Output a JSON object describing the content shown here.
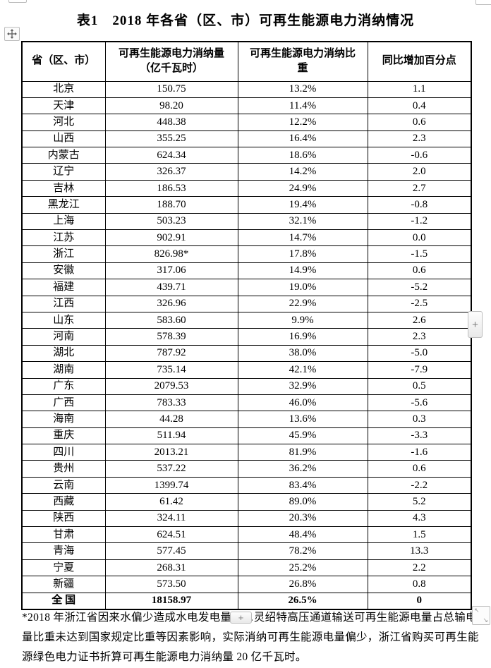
{
  "page": {
    "title": "表1　2018 年各省（区、市）可再生能源电力消纳情况"
  },
  "table": {
    "headers": [
      "省（区、市）",
      "可再生能源电力消纳量\n（亿千瓦时）",
      "可再生能源电力消纳比\n重",
      "同比增加百分点"
    ],
    "rows": [
      [
        "北京",
        "150.75",
        "13.2%",
        "1.1"
      ],
      [
        "天津",
        "98.20",
        "11.4%",
        "0.4"
      ],
      [
        "河北",
        "448.38",
        "12.2%",
        "0.6"
      ],
      [
        "山西",
        "355.25",
        "16.4%",
        "2.3"
      ],
      [
        "内蒙古",
        "624.34",
        "18.6%",
        "-0.6"
      ],
      [
        "辽宁",
        "326.37",
        "14.2%",
        "2.0"
      ],
      [
        "吉林",
        "186.53",
        "24.9%",
        "2.7"
      ],
      [
        "黑龙江",
        "188.70",
        "19.4%",
        "-0.8"
      ],
      [
        "上海",
        "503.23",
        "32.1%",
        "-1.2"
      ],
      [
        "江苏",
        "902.91",
        "14.7%",
        "0.0"
      ],
      [
        "浙江",
        "826.98*",
        "17.8%",
        "-1.5"
      ],
      [
        "安徽",
        "317.06",
        "14.9%",
        "0.6"
      ],
      [
        "福建",
        "439.71",
        "19.0%",
        "-5.2"
      ],
      [
        "江西",
        "326.96",
        "22.9%",
        "-2.5"
      ],
      [
        "山东",
        "583.60",
        "9.9%",
        "2.6"
      ],
      [
        "河南",
        "578.39",
        "16.9%",
        "2.3"
      ],
      [
        "湖北",
        "787.92",
        "38.0%",
        "-5.0"
      ],
      [
        "湖南",
        "735.14",
        "42.1%",
        "-7.9"
      ],
      [
        "广东",
        "2079.53",
        "32.9%",
        "0.5"
      ],
      [
        "广西",
        "783.33",
        "46.0%",
        "-5.6"
      ],
      [
        "海南",
        "44.28",
        "13.6%",
        "0.3"
      ],
      [
        "重庆",
        "511.94",
        "45.9%",
        "-3.3"
      ],
      [
        "四川",
        "2013.21",
        "81.9%",
        "-1.6"
      ],
      [
        "贵州",
        "537.22",
        "36.2%",
        "0.6"
      ],
      [
        "云南",
        "1399.74",
        "83.4%",
        "-2.2"
      ],
      [
        "西藏",
        "61.42",
        "89.0%",
        "5.2"
      ],
      [
        "陕西",
        "324.11",
        "20.3%",
        "4.3"
      ],
      [
        "甘肃",
        "624.51",
        "48.4%",
        "1.5"
      ],
      [
        "青海",
        "577.45",
        "78.2%",
        "13.3"
      ],
      [
        "宁夏",
        "268.31",
        "25.2%",
        "2.2"
      ],
      [
        "新疆",
        "573.50",
        "26.8%",
        "0.8"
      ]
    ],
    "total": [
      "全 国",
      "18158.97",
      "26.5%",
      "0"
    ]
  },
  "footnote": "*2018 年浙江省因来水偏少造成水电发电量……灵绍特高压通道输送可再生能源电量占总输电\n量比重未达到国家规定比重等因素影响，实际消纳可再生能源电量偏少，浙江省购买可再生能\n源绿色电力证书折算可再生能源电力消纳量 20 亿千瓦时。",
  "controls": {
    "plus_label": "+",
    "resize_arrow_nw": "↖",
    "resize_arrow_se": "↘"
  },
  "colors": {
    "background": "#ffffff",
    "text": "#000000",
    "table_border": "#000000",
    "control_border": "#bdbdbd",
    "control_bg": "#f0f0f0",
    "control_fg": "#7d7d7d"
  }
}
